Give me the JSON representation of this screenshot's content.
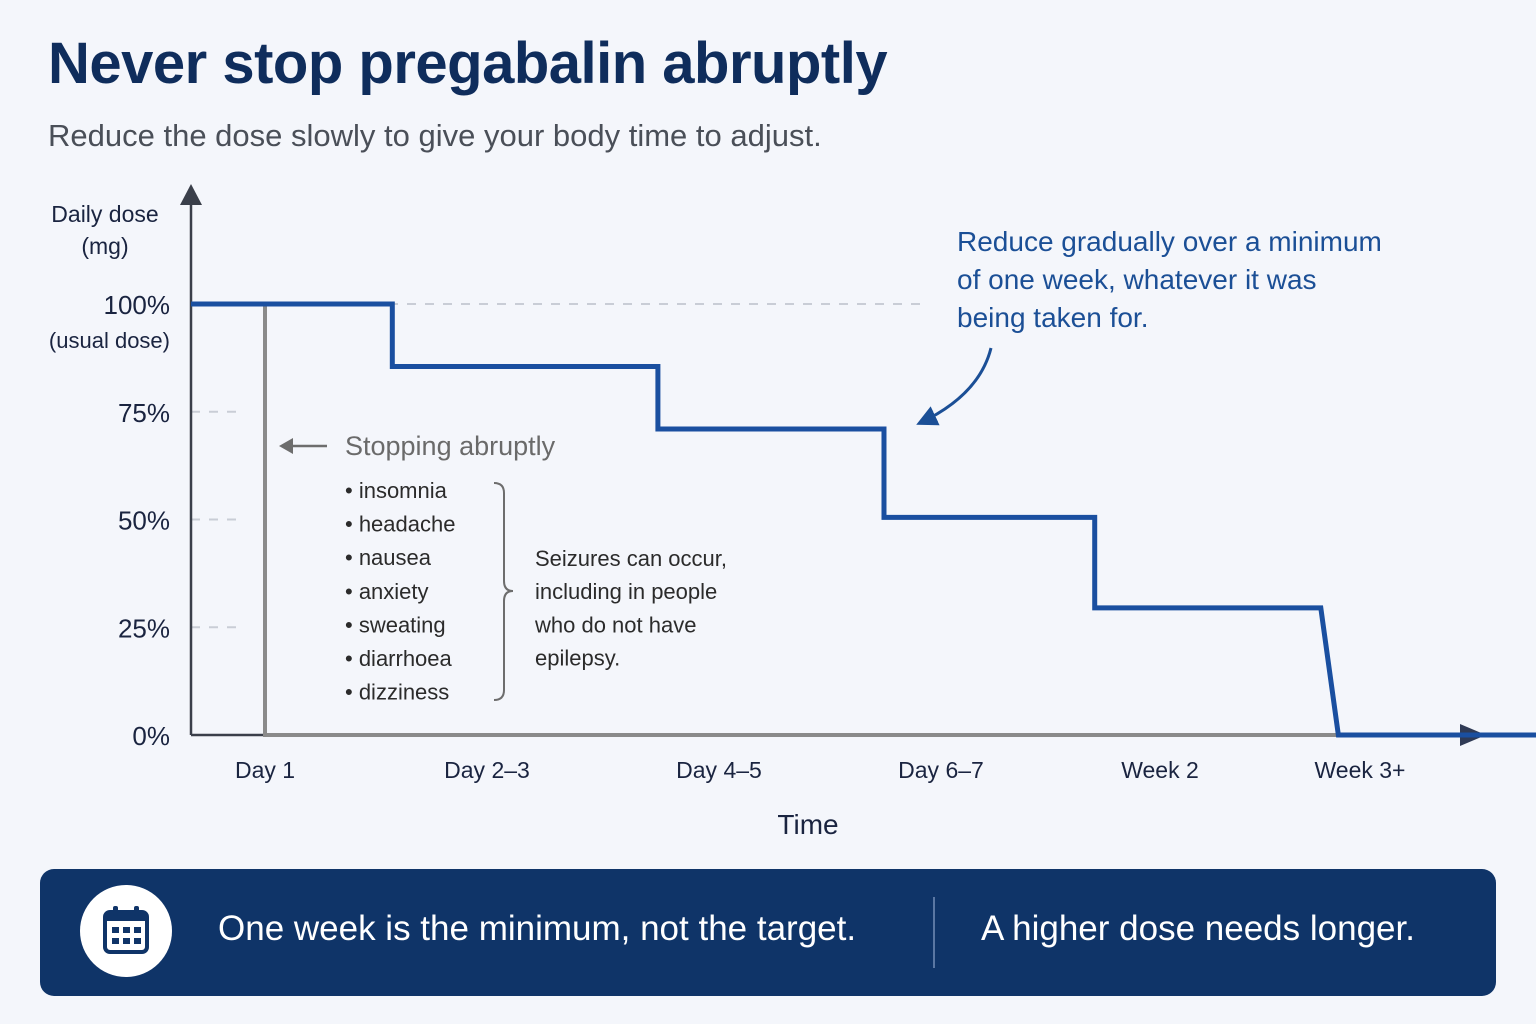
{
  "title": "Never stop pregabalin abruptly",
  "subtitle": "Reduce the dose slowly to give your body time to adjust.",
  "chart_data": {
    "type": "line",
    "ylabel": [
      "Daily dose",
      "(mg)"
    ],
    "xlabel": "Time",
    "y_ticks": [
      {
        "value": 100,
        "label": "100%",
        "sublabel": "(usual dose)"
      },
      {
        "value": 75,
        "label": "75%"
      },
      {
        "value": 50,
        "label": "50%"
      },
      {
        "value": 25,
        "label": "25%"
      },
      {
        "value": 0,
        "label": "0%"
      }
    ],
    "ylim": [
      0,
      100
    ],
    "categories": [
      "Day 1",
      "Day 2–3",
      "Day 4–5",
      "Day 6–7",
      "Week 2",
      "Week 3+"
    ],
    "series": [
      {
        "name": "",
        "color": "#1a4fa0",
        "style": "stepped",
        "points": [
          {
            "x": 0.0,
            "y": 100
          },
          {
            "x": 0.58,
            "y": 100
          },
          {
            "x": 0.58,
            "y": 85.5
          },
          {
            "x": 1.79,
            "y": 85.5
          },
          {
            "x": 1.79,
            "y": 71
          },
          {
            "x": 2.82,
            "y": 71
          },
          {
            "x": 2.82,
            "y": 50.5
          },
          {
            "x": 3.78,
            "y": 50.5
          },
          {
            "x": 3.78,
            "y": 29.5
          },
          {
            "x": 4.81,
            "y": 29.5
          },
          {
            "x": 4.89,
            "y": 0
          },
          {
            "x": 5.8,
            "y": 0
          }
        ]
      },
      {
        "name": "",
        "color": "#8a8a8a",
        "style": "abrupt",
        "points": [
          {
            "x": 0,
            "y": 100
          },
          {
            "x": 0,
            "y": 0
          },
          {
            "x": 4.89,
            "y": 0
          }
        ]
      }
    ],
    "annotations": {
      "gradual": [
        "Reduce gradually over a minimum",
        "of one week, whatever it was",
        "being taken for."
      ],
      "abrupt_title": "Stopping abruptly",
      "symptoms": [
        "insomnia",
        "headache",
        "nausea",
        "anxiety",
        "sweating",
        "diarrhoea",
        "dizziness"
      ],
      "seizure_note": [
        "Seizures can occur,",
        "including in people",
        "who do not have",
        "epilepsy."
      ]
    }
  },
  "banner": {
    "icon": "calendar-icon",
    "text1": "One week is the minimum, not the target.",
    "text2": "A higher dose needs longer."
  },
  "colors": {
    "navy": "#0f2d5c",
    "line_blue": "#1a4fa0",
    "abrupt_gray": "#8a8a8a",
    "banner_bg": "#0f3468",
    "annotation_blue": "#1b4f96"
  }
}
